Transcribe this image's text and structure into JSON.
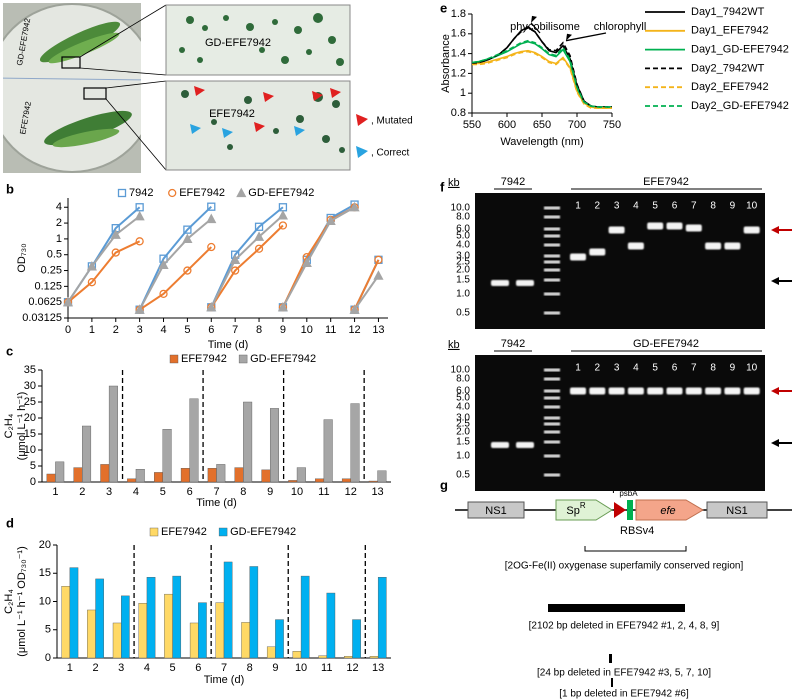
{
  "panel_labels": [
    "a",
    "b",
    "c",
    "d",
    "e",
    "f",
    "g"
  ],
  "photo": {
    "plate_labels": [
      "GD-EFE7942",
      "EFE7942"
    ],
    "zoom_top": "GD-EFE7942",
    "zoom_bottom": "EFE7942",
    "legend": [
      ", Mutated",
      ", Correct"
    ]
  },
  "chart_data": [
    {
      "type": "line",
      "y_label": [
        "OD₇₃₀"
      ],
      "x_label": "Time (d)",
      "log_y": true,
      "x": [
        0,
        1,
        2,
        3,
        null,
        3,
        4,
        5,
        6,
        null,
        6,
        7,
        8,
        9,
        null,
        9,
        10,
        11,
        12,
        null,
        12,
        13
      ],
      "xlim": [
        0,
        13.4
      ],
      "xticks": [
        0,
        1,
        2,
        3,
        4,
        5,
        6,
        7,
        8,
        9,
        10,
        11,
        12,
        13
      ],
      "ylim": [
        0.03125,
        6
      ],
      "yticks": [
        0.03125,
        0.0625,
        0.125,
        0.25,
        0.5,
        1,
        2,
        4
      ],
      "series": [
        {
          "name": "7942",
          "color": "#5b9bd5",
          "marker": "square",
          "values": [
            0.0625,
            0.3,
            1.6,
            4,
            null,
            0.045,
            0.42,
            1.5,
            4.1,
            null,
            0.05,
            0.5,
            1.7,
            4,
            null,
            0.05,
            0.4,
            2.5,
            4.5,
            null,
            0.045,
            0.4
          ]
        },
        {
          "name": "EFE7942",
          "color": "#ed7d31",
          "marker": "circle",
          "values": [
            0.0625,
            0.15,
            0.55,
            0.9,
            null,
            0.045,
            0.09,
            0.25,
            0.7,
            null,
            0.05,
            0.25,
            0.65,
            1.8,
            null,
            0.05,
            0.45,
            2.3,
            4,
            null,
            0.045,
            0.4
          ]
        },
        {
          "name": "GD-EFE7942",
          "color": "#a5a5a5",
          "marker": "triangle",
          "values": [
            0.0625,
            0.3,
            1.2,
            2.7,
            null,
            0.045,
            0.32,
            1,
            2.4,
            null,
            0.05,
            0.4,
            1.1,
            2.8,
            null,
            0.05,
            0.35,
            2.2,
            4,
            null,
            0.045,
            0.2
          ]
        }
      ]
    },
    {
      "type": "bar",
      "y_label": [
        "C₂H₄",
        "(μmol L⁻¹ h⁻¹)"
      ],
      "x_label": "Time (d)",
      "categories": [
        "1",
        "2",
        "3",
        "4",
        "5",
        "6",
        "7",
        "8",
        "9",
        "10",
        "11",
        "12",
        "13"
      ],
      "ylim": [
        0,
        35
      ],
      "yticks": [
        0,
        5,
        10,
        15,
        20,
        25,
        30,
        35
      ],
      "series": [
        {
          "name": "EFE7942",
          "color": "#e2702b",
          "values": [
            2.5,
            4.5,
            5.5,
            1,
            3,
            4.3,
            4.3,
            4.5,
            3.8,
            0.5,
            1,
            1,
            0.3
          ]
        },
        {
          "name": "GD-EFE7942",
          "color": "#a6a6a6",
          "values": [
            6.3,
            17.5,
            30,
            4,
            16.5,
            26,
            5.5,
            25,
            23,
            4.5,
            19.5,
            24.5,
            3.5
          ]
        }
      ]
    },
    {
      "type": "bar",
      "y_label": [
        "C₂H₄",
        "(μmol L⁻¹ h⁻¹ OD₇₃₀⁻¹)"
      ],
      "x_label": "Time (d)",
      "categories": [
        "1",
        "2",
        "3",
        "4",
        "5",
        "6",
        "7",
        "8",
        "9",
        "10",
        "11",
        "12",
        "13"
      ],
      "ylim": [
        0,
        20
      ],
      "yticks": [
        0,
        5,
        10,
        15,
        20
      ],
      "series": [
        {
          "name": "EFE7942",
          "color": "#ffd966",
          "values": [
            12.7,
            8.5,
            6.2,
            9.7,
            11.3,
            6.2,
            9.8,
            6.3,
            2,
            1.2,
            0.4,
            0.3,
            0.3
          ]
        },
        {
          "name": "GD-EFE7942",
          "color": "#00b0f0",
          "values": [
            16,
            14,
            11,
            14.3,
            14.5,
            9.8,
            17,
            16.2,
            6.8,
            14.5,
            11.5,
            6.8,
            14.3
          ]
        }
      ]
    },
    {
      "type": "line",
      "y_label": [
        "Absorbance"
      ],
      "x_label": "Wavelength (nm)",
      "annotations": [
        "phycobilisome",
        "chlorophyll"
      ],
      "x": [
        550,
        560,
        570,
        580,
        590,
        600,
        610,
        620,
        630,
        640,
        650,
        660,
        670,
        680,
        690,
        700,
        710,
        720,
        730,
        740,
        750
      ],
      "xlim": [
        550,
        750
      ],
      "xticks": [
        550,
        600,
        650,
        700,
        750
      ],
      "ylim": [
        0.8,
        1.8
      ],
      "yticks": [
        0.8,
        1,
        1.2,
        1.4,
        1.6,
        1.8
      ],
      "series": [
        {
          "name": "Day1_7942WT",
          "color": "#000000",
          "dash": false,
          "values": [
            1.3,
            1.31,
            1.33,
            1.36,
            1.4,
            1.46,
            1.55,
            1.63,
            1.67,
            1.62,
            1.52,
            1.43,
            1.41,
            1.48,
            1.35,
            1.08,
            0.92,
            0.87,
            0.86,
            0.86,
            0.86
          ]
        },
        {
          "name": "Day1_EFE7942",
          "color": "#f4b41a",
          "dash": false,
          "values": [
            1.3,
            1.3,
            1.31,
            1.33,
            1.35,
            1.37,
            1.4,
            1.42,
            1.43,
            1.41,
            1.37,
            1.32,
            1.3,
            1.36,
            1.26,
            1.02,
            0.9,
            0.86,
            0.85,
            0.85,
            0.85
          ]
        },
        {
          "name": "Day1_GD-EFE7942",
          "color": "#00b050",
          "dash": false,
          "values": [
            1.31,
            1.32,
            1.34,
            1.36,
            1.39,
            1.42,
            1.46,
            1.5,
            1.52,
            1.5,
            1.45,
            1.39,
            1.37,
            1.44,
            1.32,
            1.05,
            0.91,
            0.87,
            0.86,
            0.86,
            0.86
          ]
        },
        {
          "name": "Day2_7942WT",
          "color": "#000000",
          "dash": true,
          "values": [
            1.3,
            1.31,
            1.33,
            1.36,
            1.4,
            1.46,
            1.55,
            1.62,
            1.66,
            1.62,
            1.52,
            1.44,
            1.43,
            1.51,
            1.38,
            1.09,
            0.92,
            0.87,
            0.86,
            0.86,
            0.86
          ]
        },
        {
          "name": "Day2_EFE7942",
          "color": "#f4b41a",
          "dash": true,
          "values": [
            1.29,
            1.29,
            1.3,
            1.32,
            1.34,
            1.36,
            1.39,
            1.41,
            1.42,
            1.4,
            1.36,
            1.31,
            1.29,
            1.35,
            1.25,
            1.01,
            0.89,
            0.85,
            0.85,
            0.85,
            0.85
          ]
        },
        {
          "name": "Day2_GD-EFE7942",
          "color": "#00b050",
          "dash": true,
          "values": [
            1.31,
            1.32,
            1.34,
            1.37,
            1.4,
            1.43,
            1.47,
            1.51,
            1.53,
            1.51,
            1.46,
            1.4,
            1.38,
            1.46,
            1.34,
            1.06,
            0.91,
            0.87,
            0.86,
            0.86,
            0.86
          ]
        }
      ]
    }
  ],
  "gels": [
    {
      "unit": "kb",
      "ladder": [
        "10.0",
        "8.0",
        "6.0",
        "5.0",
        "4.0",
        "3.0",
        "2.5",
        "2.0",
        "1.5",
        "1.0",
        "0.5"
      ],
      "groups": [
        "7942",
        "EFE7942"
      ],
      "lanes": [
        "1",
        "2",
        "3",
        "4",
        "5",
        "6",
        "7",
        "8",
        "9",
        "10"
      ]
    },
    {
      "unit": "kb",
      "ladder": [
        "10.0",
        "8.0",
        "6.0",
        "5.0",
        "4.0",
        "3.0",
        "2.5",
        "2.0",
        "1.5",
        "1.0",
        "0.5"
      ],
      "groups": [
        "7942",
        "GD-EFE7942"
      ],
      "lanes": [
        "1",
        "2",
        "3",
        "4",
        "5",
        "6",
        "7",
        "8",
        "9",
        "10"
      ]
    }
  ],
  "construct": {
    "ns1_left": "NS1",
    "marker": "Sp",
    "marker_sup": "R",
    "promoter": "P",
    "promoter_sub": "psbA",
    "rbs": "RBSv4",
    "gene": "efe",
    "ns1_right": "NS1",
    "notes": [
      "[2OG-Fe(II) oxygenase superfamily conserved region]",
      "[2102 bp deleted in EFE7942 #1, 2, 4, 8, 9]",
      "[24 bp deleted in EFE7942 #3, 5, 7, 10]",
      "[1 bp deleted in EFE7942 #6]"
    ]
  }
}
